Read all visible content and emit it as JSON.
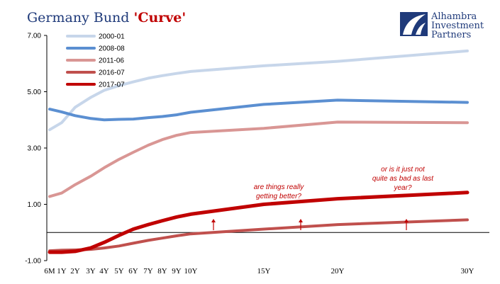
{
  "chart_data": {
    "type": "line",
    "title_prefix": "Germany Bund ",
    "title_accent": "'Curve'",
    "y_ticks": [
      "7.00",
      "5.00",
      "3.00",
      "1.00",
      "-1.00"
    ],
    "y_tick_values": [
      7,
      5,
      3,
      1,
      -1
    ],
    "ylim": [
      -1,
      7
    ],
    "x_tick_labels": [
      "6M",
      "1Y",
      "2Y",
      "3Y",
      "4Y",
      "5Y",
      "6Y",
      "7Y",
      "8Y",
      "9Y",
      "10Y",
      "15Y",
      "20Y",
      "30Y"
    ],
    "x_tick_years": [
      0.5,
      1,
      2,
      3,
      4,
      5,
      6,
      7,
      8,
      9,
      10,
      15,
      20,
      30
    ],
    "zero_line": true,
    "grid": false,
    "legend_position": "top-left",
    "series": [
      {
        "name": "2000-01",
        "color": "#c7d6ea",
        "x": [
          0.5,
          1,
          2,
          3,
          4,
          5,
          6,
          7,
          8,
          9,
          10,
          15,
          20,
          30
        ],
        "values": [
          3.65,
          3.9,
          4.45,
          4.8,
          5.05,
          5.22,
          5.35,
          5.48,
          5.57,
          5.65,
          5.72,
          5.92,
          6.08,
          6.45
        ]
      },
      {
        "name": "2008-08",
        "color": "#5b8fd1",
        "x": [
          0.5,
          1,
          2,
          3,
          4,
          5,
          6,
          7,
          8,
          9,
          10,
          15,
          20,
          30
        ],
        "values": [
          4.38,
          4.28,
          4.15,
          4.05,
          4.0,
          4.02,
          4.03,
          4.08,
          4.12,
          4.18,
          4.27,
          4.55,
          4.7,
          4.62
        ]
      },
      {
        "name": "2011-06",
        "color": "#d99694",
        "x": [
          0.5,
          1,
          2,
          3,
          4,
          5,
          6,
          7,
          8,
          9,
          10,
          15,
          20,
          30
        ],
        "values": [
          1.28,
          1.4,
          1.7,
          2.0,
          2.3,
          2.6,
          2.85,
          3.1,
          3.3,
          3.45,
          3.55,
          3.7,
          3.92,
          3.9
        ]
      },
      {
        "name": "2016-07",
        "color": "#c0504d",
        "x": [
          0.5,
          1,
          2,
          3,
          4,
          5,
          6,
          7,
          8,
          9,
          10,
          15,
          20,
          30
        ],
        "values": [
          -0.65,
          -0.63,
          -0.62,
          -0.6,
          -0.55,
          -0.48,
          -0.38,
          -0.28,
          -0.2,
          -0.12,
          -0.05,
          0.12,
          0.28,
          0.45
        ]
      },
      {
        "name": "2017-07",
        "color": "#c00000",
        "x": [
          0.5,
          1,
          2,
          3,
          4,
          5,
          6,
          7,
          8,
          9,
          10,
          15,
          20,
          30
        ],
        "values": [
          -0.7,
          -0.7,
          -0.67,
          -0.55,
          -0.35,
          -0.1,
          0.12,
          0.28,
          0.42,
          0.55,
          0.65,
          1.0,
          1.2,
          1.42
        ]
      }
    ],
    "annotations": [
      {
        "lines": [
          "are things really",
          "getting better?"
        ]
      },
      {
        "lines": [
          "or is it just not",
          "quite as bad as last",
          "year?"
        ]
      }
    ]
  },
  "brand": {
    "name_lines": [
      "Alhambra",
      "Investment",
      "Partners"
    ],
    "logo_icon": "alhambra-logo"
  }
}
